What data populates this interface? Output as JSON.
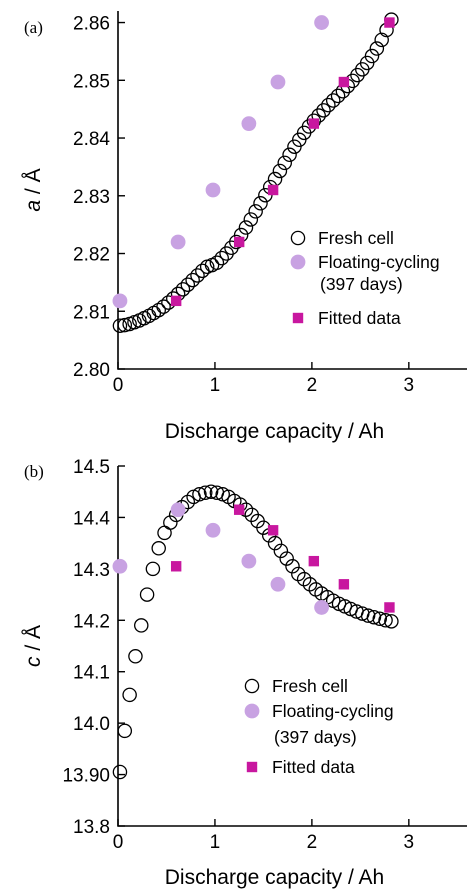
{
  "chart_data": [
    {
      "type": "scatter",
      "panel_label": "(a)",
      "ylabel_italic": "a",
      "ylabel_unit": " / Å",
      "xlabel": "Discharge capacity / Ah",
      "xlim": [
        0,
        3.6
      ],
      "ylim": [
        2.8,
        2.862
      ],
      "xticks": [
        0,
        1,
        2,
        3
      ],
      "yticks": [
        2.8,
        2.81,
        2.82,
        2.83,
        2.84,
        2.85,
        2.86
      ],
      "ytick_labels": [
        "2.80",
        "2.81",
        "2.82",
        "2.83",
        "2.84",
        "2.85",
        "2.86"
      ],
      "legend": {
        "fresh": "Fresh cell",
        "floating": "Floating-cycling",
        "floating_sub": "(397 days)",
        "fitted": "Fitted data"
      },
      "series": [
        {
          "key": "fresh",
          "marker": "open-circle",
          "color": "#000000",
          "x": [
            0.02,
            0.07,
            0.12,
            0.17,
            0.22,
            0.27,
            0.32,
            0.37,
            0.42,
            0.47,
            0.52,
            0.57,
            0.62,
            0.67,
            0.72,
            0.77,
            0.82,
            0.87,
            0.92,
            0.97,
            1.02,
            1.07,
            1.12,
            1.17,
            1.22,
            1.27,
            1.32,
            1.37,
            1.42,
            1.47,
            1.52,
            1.57,
            1.62,
            1.67,
            1.72,
            1.77,
            1.82,
            1.87,
            1.92,
            1.97,
            2.02,
            2.07,
            2.12,
            2.17,
            2.22,
            2.27,
            2.32,
            2.37,
            2.42,
            2.47,
            2.52,
            2.57,
            2.62,
            2.67,
            2.72,
            2.77,
            2.82
          ],
          "y": [
            2.8075,
            2.8076,
            2.8078,
            2.8081,
            2.8084,
            2.8088,
            2.8092,
            2.8097,
            2.8102,
            2.8108,
            2.8115,
            2.8122,
            2.813,
            2.8138,
            2.8146,
            2.8154,
            2.8162,
            2.817,
            2.8177,
            2.818,
            2.8184,
            2.8192,
            2.82,
            2.821,
            2.822,
            2.8232,
            2.8245,
            2.8259,
            2.8273,
            2.8287,
            2.8301,
            2.8315,
            2.8329,
            2.8343,
            2.8357,
            2.8371,
            2.8385,
            2.8397,
            2.8409,
            2.842,
            2.843,
            2.8439,
            2.8448,
            2.8457,
            2.8465,
            2.8473,
            2.8481,
            2.849,
            2.8499,
            2.8509,
            2.8519,
            2.853,
            2.8542,
            2.8555,
            2.857,
            2.8587,
            2.8605
          ]
        },
        {
          "key": "floating",
          "marker": "filled-circle",
          "color": "#c8a2e2",
          "x": [
            0.02,
            0.62,
            0.98,
            1.35,
            1.65,
            2.1
          ],
          "y": [
            2.8118,
            2.822,
            2.831,
            2.8425,
            2.8497,
            2.86
          ]
        },
        {
          "key": "fitted",
          "marker": "filled-square",
          "color": "#c8179f",
          "x": [
            0.6,
            1.25,
            1.6,
            2.02,
            2.33,
            2.8
          ],
          "y": [
            2.8118,
            2.822,
            2.831,
            2.8425,
            2.8497,
            2.86
          ]
        }
      ]
    },
    {
      "type": "scatter",
      "panel_label": "(b)",
      "ylabel_italic": "c",
      "ylabel_unit": " / Å",
      "xlabel": "Discharge capacity / Ah",
      "xlim": [
        0,
        3.6
      ],
      "ylim": [
        13.8,
        14.5
      ],
      "xticks": [
        0,
        1,
        2,
        3
      ],
      "yticks": [
        13.8,
        13.9,
        14.0,
        14.1,
        14.2,
        14.3,
        14.4,
        14.5
      ],
      "ytick_labels": [
        "13.8",
        "13.90",
        "14.0",
        "14.1",
        "14.2",
        "14.3",
        "14.4",
        "14.5"
      ],
      "legend": {
        "fresh": "Fresh cell",
        "floating": "Floating-cycling",
        "floating_sub": "(397 days)",
        "fitted": "Fitted data"
      },
      "series": [
        {
          "key": "fresh",
          "marker": "open-circle",
          "color": "#000000",
          "x": [
            0.02,
            0.07,
            0.12,
            0.18,
            0.24,
            0.3,
            0.36,
            0.42,
            0.48,
            0.54,
            0.6,
            0.66,
            0.72,
            0.78,
            0.84,
            0.9,
            0.96,
            1.02,
            1.08,
            1.14,
            1.2,
            1.26,
            1.32,
            1.38,
            1.44,
            1.5,
            1.56,
            1.62,
            1.68,
            1.74,
            1.8,
            1.86,
            1.92,
            1.98,
            2.04,
            2.1,
            2.16,
            2.22,
            2.28,
            2.34,
            2.4,
            2.46,
            2.52,
            2.58,
            2.64,
            2.7,
            2.76,
            2.82
          ],
          "y": [
            13.905,
            13.985,
            14.055,
            14.13,
            14.19,
            14.25,
            14.3,
            14.34,
            14.37,
            14.39,
            14.405,
            14.42,
            14.43,
            14.44,
            14.445,
            14.448,
            14.45,
            14.448,
            14.445,
            14.44,
            14.432,
            14.425,
            14.415,
            14.405,
            14.393,
            14.38,
            14.365,
            14.35,
            14.335,
            14.32,
            14.305,
            14.29,
            14.28,
            14.27,
            14.26,
            14.252,
            14.245,
            14.238,
            14.232,
            14.227,
            14.222,
            14.217,
            14.213,
            14.209,
            14.206,
            14.203,
            14.2,
            14.198
          ]
        },
        {
          "key": "floating",
          "marker": "filled-circle",
          "color": "#c8a2e2",
          "x": [
            0.02,
            0.62,
            0.98,
            1.35,
            1.65,
            2.1
          ],
          "y": [
            14.305,
            14.415,
            14.375,
            14.315,
            14.27,
            14.225
          ]
        },
        {
          "key": "fitted",
          "marker": "filled-square",
          "color": "#c8179f",
          "x": [
            0.6,
            1.25,
            1.6,
            2.02,
            2.33,
            2.8
          ],
          "y": [
            14.305,
            14.415,
            14.375,
            14.315,
            14.27,
            14.225
          ]
        }
      ]
    }
  ]
}
